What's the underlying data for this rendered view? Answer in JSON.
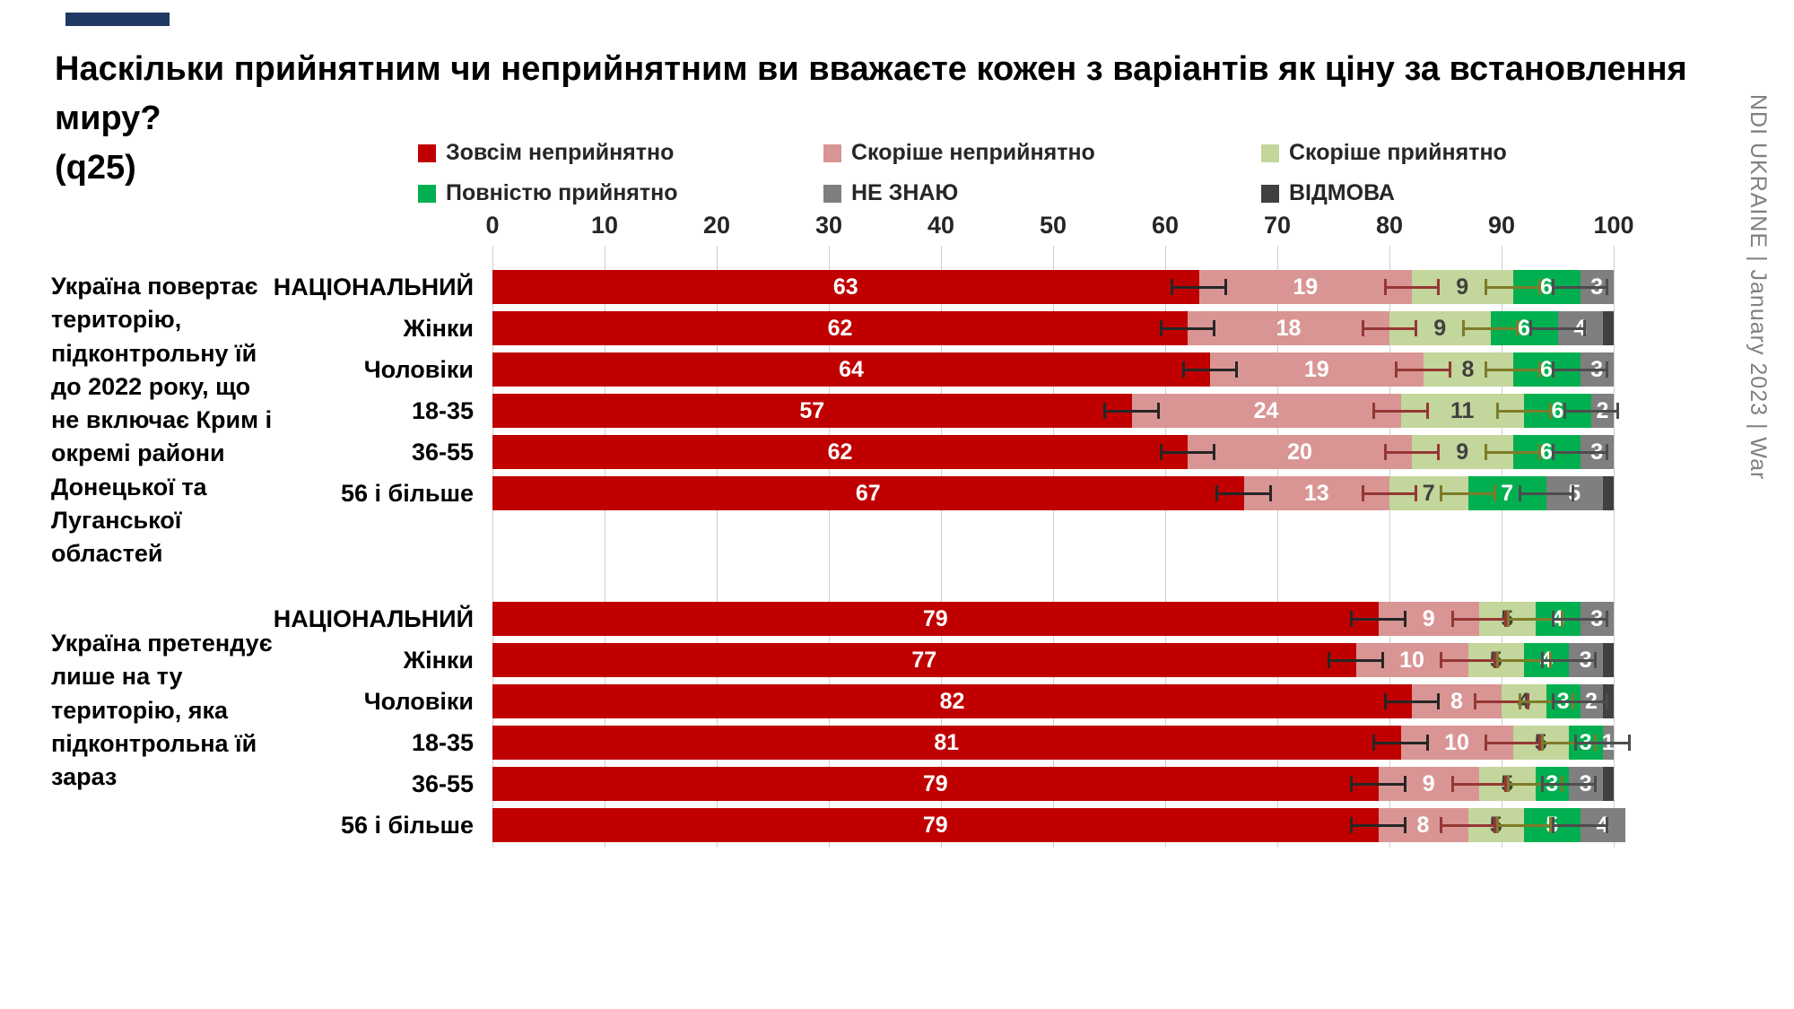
{
  "title": {
    "text": "Наскільки прийнятним чи неприйнятним ви вважаєте кожен з варіантів як ціну за встановлення миру?\n(q25)"
  },
  "brand": {
    "side_text": "NDI UKRAINE | January 2023 | War",
    "accent_color": "#1F3864"
  },
  "chart_data": {
    "type": "bar",
    "stacked": true,
    "orientation": "horizontal",
    "grid": true,
    "legend_position": "top",
    "x_axis": {
      "min": 0,
      "max": 100,
      "ticks": [
        0,
        10,
        20,
        30,
        40,
        50,
        60,
        70,
        80,
        90,
        100
      ]
    },
    "legend": [
      {
        "label": "Зовсім неприйнятно",
        "color": "#C00000"
      },
      {
        "label": "Скоріше неприйнятно",
        "color": "#D99594"
      },
      {
        "label": "Скоріше прийнятно",
        "color": "#C3D69B"
      },
      {
        "label": "Повністю прийнятно",
        "color": "#00B050"
      },
      {
        "label": "НЕ ЗНАЮ",
        "color": "#7F7F7F"
      },
      {
        "label": "ВІДМОВА",
        "color": "#404040"
      }
    ],
    "label_text_colors": [
      "#ffffff",
      "#ffffff",
      "#404040",
      "#ffffff",
      "#ffffff",
      "#ffffff"
    ],
    "error_bar_colors": [
      "#262626",
      "#953735",
      "#7e7b2a",
      "#4d4d4d"
    ],
    "error_bar_halfwidth": 2.5,
    "groups": [
      {
        "label": "Україна повертає територію, підконтрольну їй до 2022 року, що не включає Крим і окремі райони Донецької та Луганської областей",
        "rows": [
          {
            "label": "НАЦІОНАЛЬНИЙ",
            "values": [
              63,
              19,
              9,
              6,
              3,
              0
            ]
          },
          {
            "label": "Жінки",
            "values": [
              62,
              18,
              9,
              6,
              4,
              1
            ]
          },
          {
            "label": "Чоловіки",
            "values": [
              64,
              19,
              8,
              6,
              3,
              0
            ]
          },
          {
            "label": "18-35",
            "values": [
              57,
              24,
              11,
              6,
              2,
              0
            ]
          },
          {
            "label": "36-55",
            "values": [
              62,
              20,
              9,
              6,
              3,
              0
            ]
          },
          {
            "label": "56 і більше",
            "values": [
              67,
              13,
              7,
              7,
              5,
              1
            ]
          }
        ]
      },
      {
        "label": "Україна претендує лише на ту територію, яка підконтрольна їй зараз",
        "rows": [
          {
            "label": "НАЦІОНАЛЬНИЙ",
            "values": [
              79,
              9,
              5,
              4,
              3,
              0
            ]
          },
          {
            "label": "Жінки",
            "values": [
              77,
              10,
              5,
              4,
              3,
              1
            ]
          },
          {
            "label": "Чоловіки",
            "values": [
              82,
              8,
              4,
              3,
              2,
              1
            ]
          },
          {
            "label": "18-35",
            "values": [
              81,
              10,
              5,
              3,
              1,
              0
            ]
          },
          {
            "label": "36-55",
            "values": [
              79,
              9,
              5,
              3,
              3,
              1
            ]
          },
          {
            "label": "56 і більше",
            "values": [
              79,
              8,
              5,
              5,
              4,
              0
            ]
          }
        ]
      }
    ]
  }
}
